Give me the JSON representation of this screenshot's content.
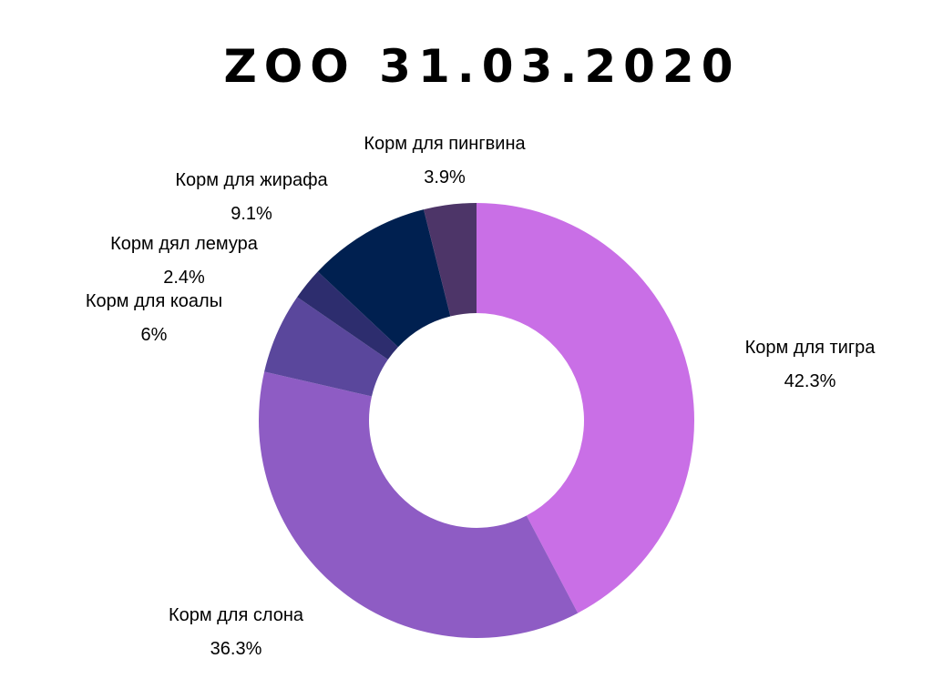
{
  "title": "ZOO 31.03.2020",
  "chart_data": {
    "type": "pie",
    "variant": "donut",
    "title": "ZOO 31.03.2020",
    "labels": [
      "Корм для тигра",
      "Корм для слона",
      "Корм для коалы",
      "Корм дял лемура",
      "Корм для жирафа",
      "Корм для пингвина"
    ],
    "values": [
      42.3,
      36.3,
      6,
      2.4,
      9.1,
      3.9
    ],
    "value_labels": [
      "42.3%",
      "36.3%",
      "6%",
      "2.4%",
      "9.1%",
      "3.9%"
    ],
    "colors": [
      "#c96fe6",
      "#8e5cc4",
      "#5a479c",
      "#2d2d6e",
      "#002050",
      "#4d3568"
    ],
    "legend": "none"
  }
}
